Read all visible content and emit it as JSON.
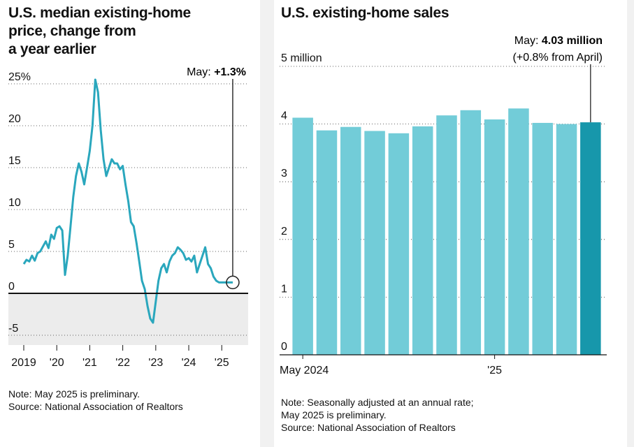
{
  "left": {
    "title_lines": [
      "U.S. median existing-home",
      "price, change from",
      "a year earlier"
    ],
    "note": "Note: May 2025 is preliminary.",
    "source": "Source: National Association of Realtors",
    "annotation": {
      "prefix": "May: ",
      "value": "+1.3%"
    }
  },
  "right": {
    "title": "U.S. existing-home sales",
    "annotation": {
      "prefix": "May: ",
      "value": "4.03 million",
      "change": "(+0.8% from April)"
    },
    "note_lines": [
      "Note: Seasonally adjusted at an annual rate;",
      "May 2025 is preliminary.",
      "Source: National Association of Realtors"
    ]
  },
  "colors": {
    "line": "#2aa7bd",
    "bar": "#72ccd8",
    "bar_highlight": "#1797ab",
    "negative_zone": "#ececec",
    "grid": "#333333"
  },
  "chart_data": [
    {
      "type": "line",
      "title": "U.S. median existing-home price, change from a year earlier",
      "xlabel": "",
      "ylabel": "",
      "ylim": [
        -5,
        25
      ],
      "xlim": [
        2019.0,
        2025.8
      ],
      "yticks": [
        -5,
        0,
        5,
        10,
        15,
        20,
        25
      ],
      "ytick_labels": [
        "-5",
        "0",
        "5",
        "10",
        "15",
        "20",
        "25%"
      ],
      "xticks": [
        2019,
        2020,
        2021,
        2022,
        2023,
        2024,
        2025
      ],
      "xtick_labels": [
        "2019",
        "'20",
        "'21",
        "'22",
        "'23",
        "'24",
        "'25"
      ],
      "grid": true,
      "negative_region_shaded": true,
      "x": [
        2019.0,
        2019.083,
        2019.167,
        2019.25,
        2019.333,
        2019.417,
        2019.5,
        2019.583,
        2019.667,
        2019.75,
        2019.833,
        2019.917,
        2020.0,
        2020.083,
        2020.167,
        2020.25,
        2020.333,
        2020.417,
        2020.5,
        2020.583,
        2020.667,
        2020.75,
        2020.833,
        2020.917,
        2021.0,
        2021.083,
        2021.167,
        2021.25,
        2021.333,
        2021.417,
        2021.5,
        2021.583,
        2021.667,
        2021.75,
        2021.833,
        2021.917,
        2022.0,
        2022.083,
        2022.167,
        2022.25,
        2022.333,
        2022.417,
        2022.5,
        2022.583,
        2022.667,
        2022.75,
        2022.833,
        2022.917,
        2023.0,
        2023.083,
        2023.167,
        2023.25,
        2023.333,
        2023.417,
        2023.5,
        2023.583,
        2023.667,
        2023.75,
        2023.833,
        2023.917,
        2024.0,
        2024.083,
        2024.167,
        2024.25,
        2024.333,
        2024.417,
        2024.5,
        2024.583,
        2024.667,
        2024.75,
        2024.833,
        2024.917,
        2025.0,
        2025.083,
        2025.167,
        2025.25,
        2025.333
      ],
      "y": [
        3.5,
        4.0,
        3.8,
        4.5,
        3.9,
        4.8,
        5.0,
        5.6,
        6.2,
        5.4,
        7.0,
        6.5,
        7.8,
        8.0,
        7.5,
        2.2,
        4.5,
        8.0,
        11.5,
        14.0,
        15.5,
        14.5,
        13.0,
        15.0,
        17.0,
        20.0,
        25.5,
        24.0,
        19.5,
        16.0,
        14.0,
        15.0,
        16.0,
        15.5,
        15.5,
        14.8,
        15.2,
        13.0,
        11.0,
        8.5,
        8.0,
        6.0,
        3.8,
        1.5,
        0.5,
        -1.5,
        -3.0,
        -3.5,
        -1.0,
        1.5,
        3.0,
        3.5,
        2.5,
        3.8,
        4.5,
        4.8,
        5.5,
        5.2,
        4.8,
        4.0,
        4.2,
        3.8,
        4.5,
        2.5,
        3.5,
        4.5,
        5.5,
        3.5,
        3.0,
        2.0,
        1.5,
        1.3,
        1.3,
        1.3,
        1.3,
        1.3,
        1.3
      ],
      "highlight_point": {
        "x": 2025.333,
        "y": 1.3
      }
    },
    {
      "type": "bar",
      "title": "U.S. existing-home sales",
      "xlabel": "",
      "ylabel": "",
      "ylim": [
        0,
        5
      ],
      "yticks": [
        0,
        1,
        2,
        3,
        4,
        5
      ],
      "ytick_labels": [
        "0",
        "1",
        "2",
        "3",
        "4",
        "5 million"
      ],
      "grid": true,
      "categories": [
        "May 2024",
        "Jun 2024",
        "Jul 2024",
        "Aug 2024",
        "Sep 2024",
        "Oct 2024",
        "Nov 2024",
        "Dec 2024",
        "Jan 2025",
        "Feb 2025",
        "Mar 2025",
        "Apr 2025",
        "May 2025"
      ],
      "xtick_labels": [
        {
          "index": 0,
          "label": "May 2024"
        },
        {
          "index": 8,
          "label": "'25"
        }
      ],
      "values": [
        4.11,
        3.89,
        3.95,
        3.88,
        3.84,
        3.96,
        4.15,
        4.24,
        4.08,
        4.27,
        4.02,
        4.0,
        4.03
      ],
      "highlight_index": 12
    }
  ]
}
